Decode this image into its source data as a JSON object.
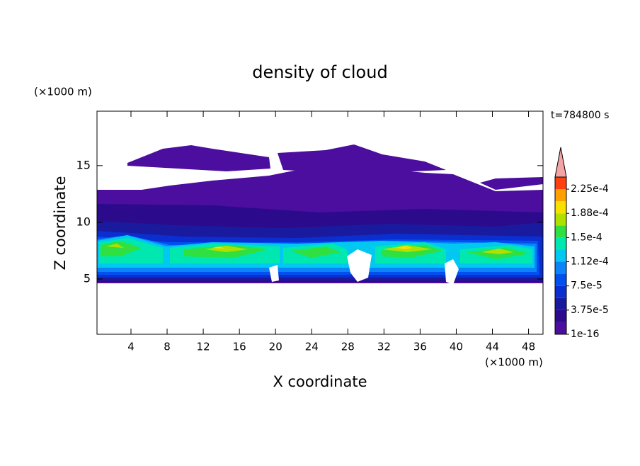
{
  "chart_data": {
    "type": "contour",
    "title": "density of cloud",
    "x_label": "X coordinate",
    "y_label": "Z coordinate",
    "y_unit": "(×1000 m)",
    "x_unit": "(×1000 m)",
    "time_label": "t=784800 s",
    "xlim": [
      0.24,
      49.6
    ],
    "ylim": [
      0.125,
      19.8
    ],
    "xticks": [
      4,
      8,
      12,
      16,
      20,
      24,
      28,
      32,
      36,
      40,
      44,
      48
    ],
    "yticks": [
      5,
      10,
      15
    ],
    "colorbar": {
      "clim": [
        1e-16,
        0.00024375
      ],
      "ticks": [
        {
          "value": 1e-16,
          "label": "1e-16"
        },
        {
          "value": 3.75e-05,
          "label": "3.75e-5"
        },
        {
          "value": 7.5e-05,
          "label": "7.5e-5"
        },
        {
          "value": 0.0001125,
          "label": "1.12e-4"
        },
        {
          "value": 0.00015,
          "label": "1.5e-4"
        },
        {
          "value": 0.0001875,
          "label": "1.88e-4"
        },
        {
          "value": 0.000225,
          "label": "2.25e-4"
        }
      ],
      "colors": [
        "#4b0e9e",
        "#2c0a8c",
        "#1a1a9e",
        "#0a2ed0",
        "#0050f0",
        "#0a84f8",
        "#00c8f0",
        "#00e8b0",
        "#30e040",
        "#b0e000",
        "#f8e000",
        "#ffa000",
        "#ff4010"
      ],
      "extend_color": "#f4a4a4"
    }
  }
}
